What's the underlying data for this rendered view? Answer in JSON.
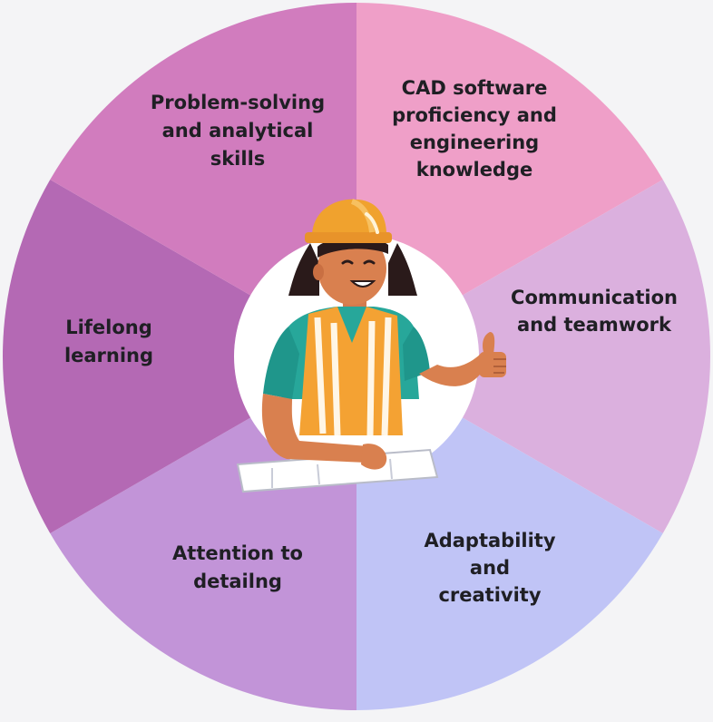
{
  "diagram": {
    "segments": [
      {
        "id": "cad",
        "lines": [
          "CAD software",
          "proficiency and",
          "engineering",
          "knowledge"
        ],
        "color": "#ef9fc8"
      },
      {
        "id": "communication",
        "lines": [
          "Communication",
          "and teamwork"
        ],
        "color": "#dbb0de"
      },
      {
        "id": "adaptability",
        "lines": [
          "Adaptability",
          "and",
          "creativity"
        ],
        "color": "#c0c4f6"
      },
      {
        "id": "attention",
        "lines": [
          "Attention to",
          "detailng"
        ],
        "color": "#c294d8"
      },
      {
        "id": "lifelong",
        "lines": [
          "Lifelong",
          "learning"
        ],
        "color": "#b469b4"
      },
      {
        "id": "problem",
        "lines": [
          "Problem-solving",
          "and analytical",
          "skills"
        ],
        "color": "#d17cbe"
      }
    ],
    "center_illustration": "engineer-with-hard-hat-thumbs-up",
    "center_color": "#ffffff",
    "background_color": "#f4f4f6"
  }
}
